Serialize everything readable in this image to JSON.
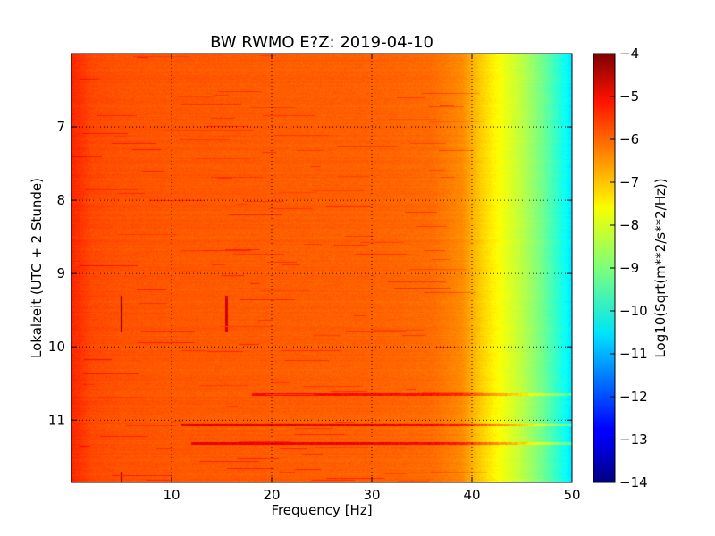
{
  "chart_data": {
    "type": "heatmap",
    "title": "BW RWMO E?Z: 2019-04-10",
    "xlabel": "Frequency [Hz]",
    "ylabel": "Lokalzeit (UTC + 2 Stunde)",
    "colorbar_label": "Log10(Sqrt(m**2/s**2/Hz))",
    "colormap": "jet",
    "xlim": [
      0,
      50
    ],
    "ylim": [
      11.85,
      6.0
    ],
    "clim": [
      -14,
      -4
    ],
    "grid": true,
    "x_ticks": [
      10,
      20,
      30,
      40,
      50
    ],
    "x_tick_labels": [
      "10",
      "20",
      "30",
      "40",
      "50"
    ],
    "y_ticks": [
      7,
      8,
      9,
      10,
      11
    ],
    "y_tick_labels": [
      "7",
      "8",
      "9",
      "10",
      "11"
    ],
    "colorbar_ticks": [
      -4,
      -5,
      -6,
      -7,
      -8,
      -9,
      -10,
      -11,
      -12,
      -13,
      -14
    ],
    "colorbar_tick_labels": [
      "−4",
      "−5",
      "−6",
      "−7",
      "−8",
      "−9",
      "−10",
      "−11",
      "−12",
      "−13",
      "−14"
    ],
    "spectrum_profile": {
      "frequency_hz": [
        0,
        2,
        5,
        10,
        20,
        30,
        36,
        39,
        41,
        43,
        45,
        47,
        49,
        50
      ],
      "log10_amplitude": [
        -5.6,
        -5.95,
        -6.05,
        -6.1,
        -6.15,
        -6.2,
        -6.3,
        -6.6,
        -7.3,
        -7.85,
        -8.4,
        -9.1,
        -10.0,
        -10.5
      ]
    },
    "horizontal_bands": [
      {
        "time_h": 10.65,
        "f_start_hz": 18,
        "f_end_hz": 50,
        "log10_amplitude": -5.0
      },
      {
        "time_h": 11.07,
        "f_start_hz": 11,
        "f_end_hz": 50,
        "log10_amplitude": -4.7
      },
      {
        "time_h": 11.32,
        "f_start_hz": 12,
        "f_end_hz": 50,
        "log10_amplitude": -4.8
      }
    ],
    "vertical_lines": [
      {
        "frequency_hz": 5.0,
        "t_start_h": 9.3,
        "t_end_h": 9.8,
        "log10_amplitude": -4.2
      },
      {
        "frequency_hz": 15.5,
        "t_start_h": 9.3,
        "t_end_h": 9.8,
        "log10_amplitude": -4.8
      },
      {
        "frequency_hz": 5.0,
        "t_start_h": 11.7,
        "t_end_h": 11.85,
        "log10_amplitude": -4.3
      }
    ]
  }
}
